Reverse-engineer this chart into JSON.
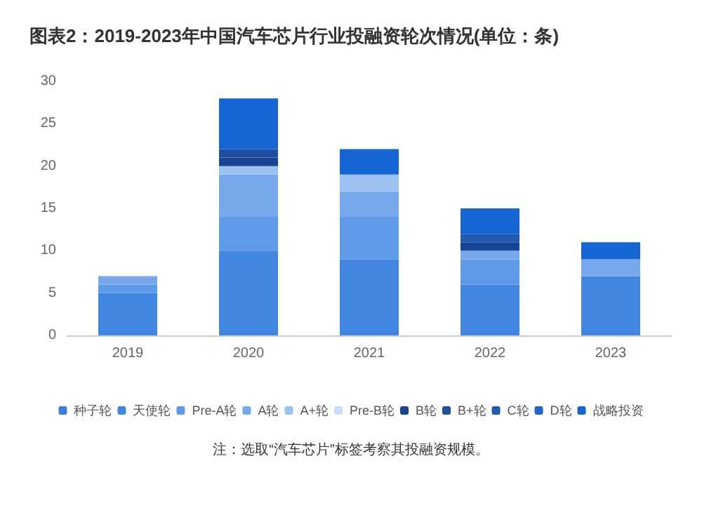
{
  "chart_data": {
    "type": "bar",
    "title": "图表2：2019-2023年中国汽车芯片行业投融资轮次情况(单位：条)",
    "categories": [
      "2019",
      "2020",
      "2021",
      "2022",
      "2023"
    ],
    "stacked": true,
    "ylim": [
      0,
      30
    ],
    "yticks": [
      0,
      5,
      10,
      15,
      20,
      25,
      30
    ],
    "grid": false,
    "legend": "bottom",
    "annotations": [
      "注：选取“汽车芯片”标签考察其投融资规模。"
    ],
    "series": [
      {
        "name": "种子轮",
        "color": "#3b7fdc",
        "values": [
          0,
          0,
          0,
          0,
          0
        ]
      },
      {
        "name": "天使轮",
        "color": "#4187e2",
        "values": [
          5,
          10,
          9,
          6,
          7
        ]
      },
      {
        "name": "Pre-A轮",
        "color": "#5e9ae8",
        "values": [
          1,
          4,
          5,
          3,
          0
        ]
      },
      {
        "name": "A轮",
        "color": "#77a9ec",
        "values": [
          1,
          5,
          3,
          1,
          2
        ]
      },
      {
        "name": "A+轮",
        "color": "#9cc2f2",
        "values": [
          0,
          1,
          2,
          0,
          0
        ]
      },
      {
        "name": "Pre-B轮",
        "color": "#c9ddf7",
        "values": [
          0,
          0,
          0,
          0,
          0
        ]
      },
      {
        "name": "B轮",
        "color": "#174494",
        "values": [
          0,
          1,
          0,
          1,
          0
        ]
      },
      {
        "name": "B+轮",
        "color": "#1d4fa3",
        "values": [
          0,
          1,
          0,
          0,
          0
        ]
      },
      {
        "name": "C轮",
        "color": "#2158b0",
        "values": [
          0,
          0,
          0,
          1,
          0
        ]
      },
      {
        "name": "D轮",
        "color": "#1f66d0",
        "values": [
          0,
          0,
          0,
          0,
          0
        ]
      },
      {
        "name": "战略投资",
        "color": "#1565d4",
        "values": [
          0,
          6,
          3,
          3,
          2
        ]
      }
    ]
  }
}
